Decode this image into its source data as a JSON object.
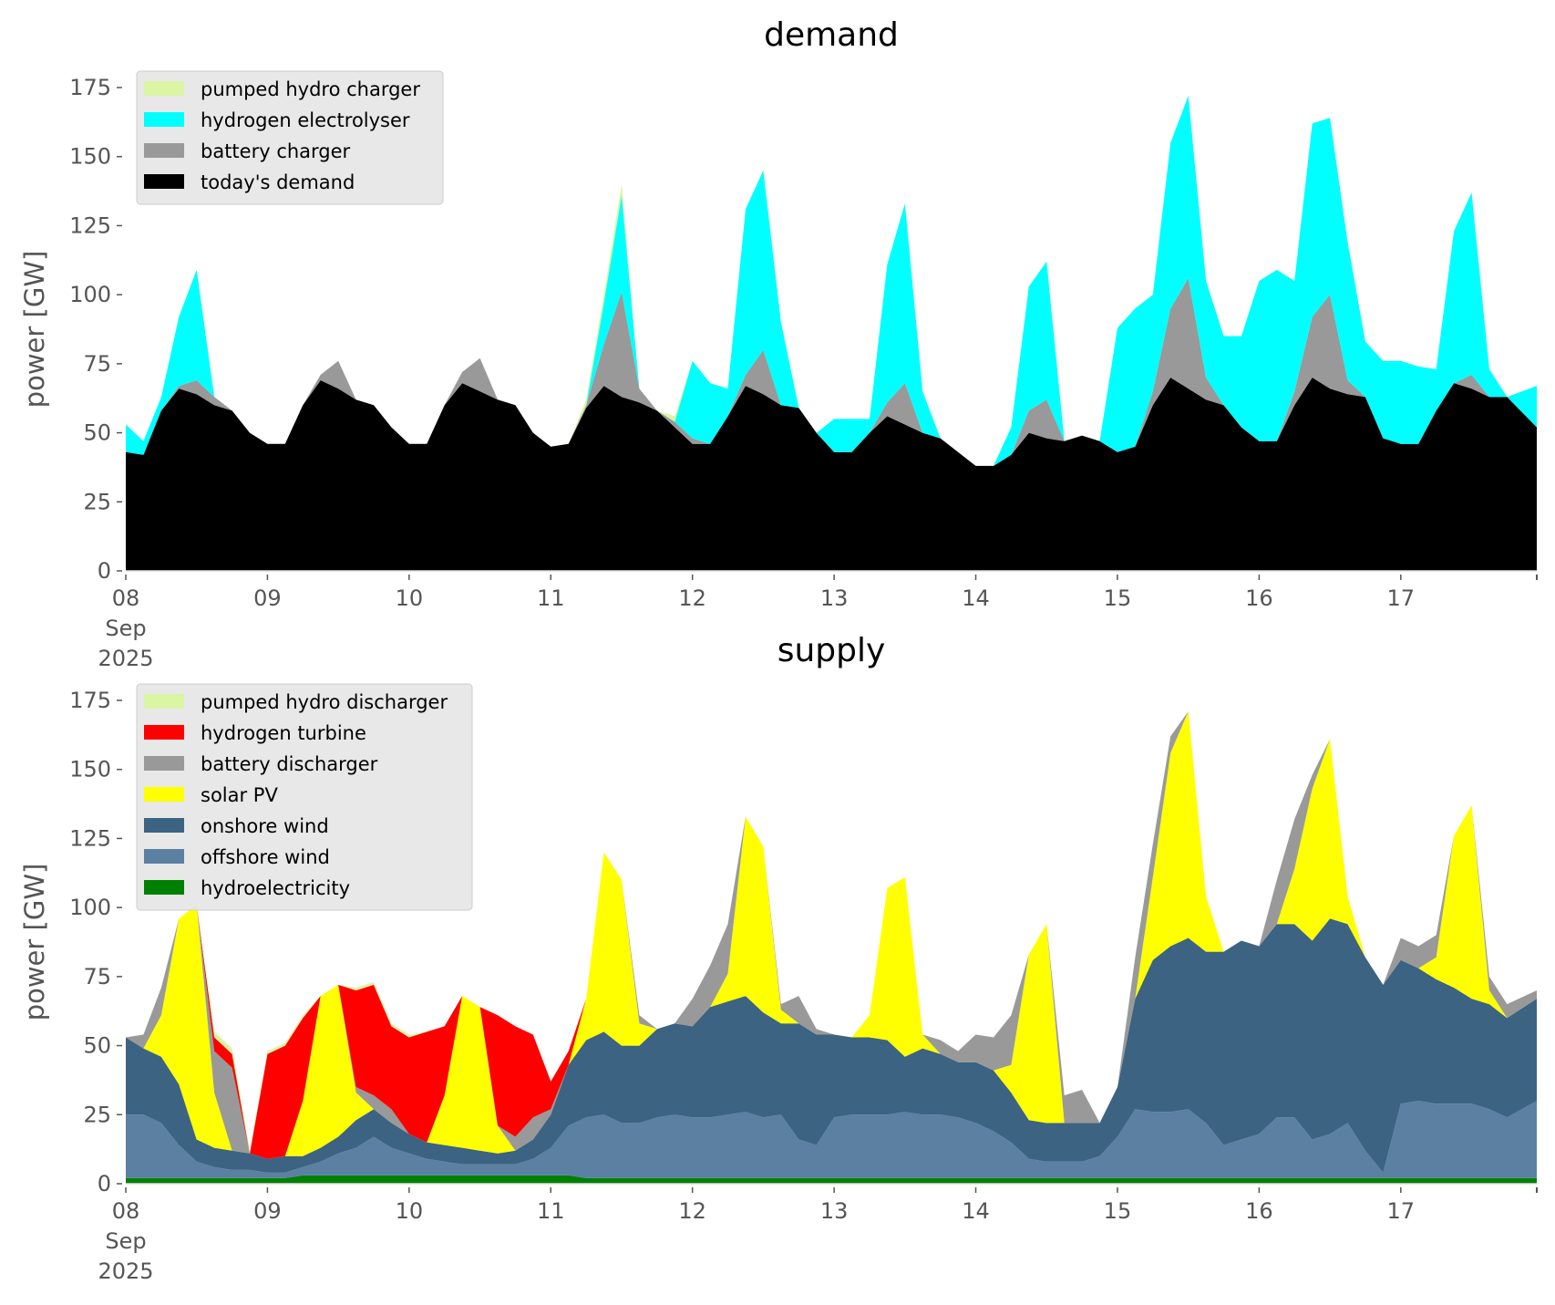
{
  "chart_data": [
    {
      "type": "area",
      "stacked": true,
      "title": "demand",
      "xlabel": "",
      "ylabel": "power [GW]",
      "ylim": [
        0,
        190
      ],
      "yticks": [
        0,
        25,
        50,
        75,
        100,
        125,
        150,
        175
      ],
      "xlim_days": [
        0,
        9.96
      ],
      "x_start": "2025-09-08 00:00",
      "x_step_hours": 3,
      "xtick_labels": [
        "08\nSep\n2025",
        "09",
        "10",
        "11",
        "12",
        "13",
        "14",
        "15",
        "16",
        "17"
      ],
      "grid": false,
      "legend_position": "top-left",
      "legend": [
        "pumped hydro charger",
        "hydrogen electrolyser",
        "battery charger",
        "today's demand"
      ],
      "series": [
        {
          "name": "today's demand",
          "color": "#000000",
          "values": [
            43,
            42,
            58,
            66,
            64,
            60,
            58,
            50,
            46,
            46,
            60,
            69,
            66,
            62,
            60,
            52,
            46,
            46,
            60,
            68,
            65,
            62,
            60,
            50,
            45,
            46,
            59,
            67,
            63,
            61,
            58,
            52,
            46,
            46,
            56,
            67,
            64,
            60,
            59,
            50,
            43,
            43,
            50,
            56,
            53,
            50,
            48,
            43,
            38,
            38,
            42,
            50,
            48,
            47,
            49,
            47,
            43,
            45,
            60,
            70,
            66,
            62,
            60,
            52,
            47,
            47,
            60,
            70,
            66,
            64,
            63,
            48,
            46,
            46,
            58,
            68,
            66,
            63,
            63,
            52
          ]
        },
        {
          "name": "battery charger",
          "color": "#999999",
          "values": [
            0,
            0,
            0,
            1,
            5,
            3,
            0,
            0,
            0,
            0,
            0,
            2,
            10,
            0,
            0,
            0,
            0,
            0,
            0,
            4,
            12,
            0,
            0,
            0,
            0,
            0,
            1,
            15,
            38,
            5,
            0,
            2,
            2,
            0,
            0,
            4,
            16,
            0,
            0,
            0,
            0,
            0,
            0,
            5,
            15,
            0,
            0,
            0,
            0,
            0,
            0,
            8,
            14,
            0,
            0,
            0,
            0,
            0,
            5,
            25,
            40,
            8,
            0,
            0,
            0,
            0,
            5,
            22,
            34,
            5,
            0,
            0,
            0,
            0,
            0,
            0,
            5,
            0,
            0,
            0
          ]
        },
        {
          "name": "hydrogen electrolyser",
          "color": "#00ffff",
          "values": [
            10,
            5,
            5,
            25,
            40,
            0,
            0,
            0,
            0,
            0,
            0,
            0,
            0,
            0,
            0,
            0,
            0,
            0,
            0,
            0,
            0,
            0,
            0,
            0,
            0,
            0,
            0,
            15,
            35,
            0,
            0,
            0,
            28,
            22,
            10,
            60,
            65,
            30,
            0,
            0,
            12,
            12,
            5,
            50,
            65,
            15,
            0,
            0,
            0,
            0,
            10,
            45,
            50,
            0,
            0,
            0,
            45,
            50,
            35,
            60,
            66,
            35,
            25,
            33,
            58,
            62,
            40,
            70,
            64,
            50,
            20,
            28,
            30,
            28,
            15,
            55,
            66,
            10,
            0,
            15
          ]
        },
        {
          "name": "pumped hydro charger",
          "color": "#daf5a4",
          "values": [
            0,
            0,
            0,
            0,
            0,
            0,
            0,
            0,
            0,
            0,
            0,
            0,
            0,
            0,
            0,
            0,
            0,
            0,
            0,
            0,
            0,
            0,
            0,
            0,
            0,
            0,
            2,
            3,
            4,
            0,
            0,
            2,
            0,
            0,
            0,
            0,
            0,
            0,
            0,
            0,
            0,
            0,
            0,
            0,
            0,
            0,
            0,
            0,
            0,
            0,
            0,
            0,
            0,
            0,
            0,
            0,
            0,
            0,
            0,
            0,
            0,
            0,
            0,
            0,
            0,
            0,
            0,
            0,
            0,
            0,
            0,
            0,
            0,
            0,
            0,
            0,
            0,
            0,
            0,
            0
          ]
        }
      ]
    },
    {
      "type": "area",
      "stacked": true,
      "title": "supply",
      "xlabel": "",
      "ylabel": "power [GW]",
      "ylim": [
        0,
        190
      ],
      "yticks": [
        0,
        25,
        50,
        75,
        100,
        125,
        150,
        175
      ],
      "xlim_days": [
        0,
        9.96
      ],
      "x_start": "2025-09-08 00:00",
      "x_step_hours": 3,
      "xtick_labels": [
        "08\nSep\n2025",
        "09",
        "10",
        "11",
        "12",
        "13",
        "14",
        "15",
        "16",
        "17"
      ],
      "grid": false,
      "legend_position": "top-left",
      "legend": [
        "pumped hydro discharger",
        "hydrogen turbine",
        "battery discharger",
        "solar PV",
        "onshore wind",
        "offshore wind",
        "hydroelectricity"
      ],
      "series": [
        {
          "name": "hydroelectricity",
          "color": "#008000",
          "values": [
            2,
            2,
            2,
            2,
            2,
            2,
            2,
            2,
            2,
            2,
            3,
            3,
            3,
            3,
            3,
            3,
            3,
            3,
            3,
            3,
            3,
            3,
            3,
            3,
            3,
            3,
            2,
            2,
            2,
            2,
            2,
            2,
            2,
            2,
            2,
            2,
            2,
            2,
            2,
            2,
            2,
            2,
            2,
            2,
            2,
            2,
            2,
            2,
            2,
            2,
            2,
            2,
            2,
            2,
            2,
            2,
            2,
            2,
            2,
            2,
            2,
            2,
            2,
            2,
            2,
            2,
            2,
            2,
            2,
            2,
            2,
            2,
            2,
            2,
            2,
            2,
            2,
            2,
            2,
            2
          ]
        },
        {
          "name": "offshore wind",
          "color": "#5b80a1",
          "values": [
            23,
            23,
            20,
            12,
            6,
            4,
            3,
            3,
            2,
            2,
            3,
            5,
            8,
            10,
            14,
            10,
            8,
            6,
            5,
            4,
            4,
            4,
            4,
            6,
            10,
            18,
            22,
            23,
            20,
            20,
            22,
            23,
            22,
            22,
            23,
            24,
            22,
            23,
            14,
            12,
            22,
            23,
            23,
            23,
            24,
            23,
            23,
            22,
            20,
            17,
            13,
            7,
            6,
            6,
            6,
            8,
            15,
            25,
            24,
            24,
            25,
            20,
            12,
            14,
            16,
            22,
            22,
            14,
            16,
            20,
            10,
            2,
            27,
            28,
            27,
            27,
            27,
            25,
            22,
            28
          ]
        },
        {
          "name": "onshore wind",
          "color": "#3c6382",
          "values": [
            28,
            24,
            24,
            22,
            8,
            7,
            7,
            6,
            5,
            6,
            4,
            5,
            6,
            10,
            10,
            9,
            7,
            6,
            6,
            6,
            5,
            4,
            5,
            7,
            12,
            22,
            28,
            30,
            28,
            28,
            32,
            33,
            33,
            40,
            41,
            42,
            38,
            33,
            42,
            40,
            30,
            28,
            28,
            27,
            20,
            24,
            22,
            20,
            22,
            22,
            18,
            14,
            14,
            14,
            14,
            12,
            18,
            40,
            55,
            60,
            62,
            62,
            70,
            72,
            68,
            70,
            70,
            72,
            78,
            72,
            70,
            68,
            52,
            48,
            45,
            42,
            38,
            38,
            36,
            37
          ]
        },
        {
          "name": "solar PV",
          "color": "#ffff00",
          "values": [
            0,
            0,
            15,
            60,
            85,
            20,
            0,
            0,
            0,
            0,
            20,
            55,
            55,
            10,
            0,
            0,
            0,
            0,
            18,
            55,
            52,
            10,
            0,
            0,
            0,
            0,
            15,
            65,
            60,
            8,
            0,
            0,
            0,
            0,
            10,
            65,
            60,
            5,
            0,
            0,
            0,
            0,
            8,
            55,
            65,
            5,
            0,
            0,
            0,
            0,
            10,
            60,
            72,
            0,
            0,
            0,
            0,
            0,
            30,
            70,
            82,
            20,
            0,
            0,
            0,
            0,
            20,
            55,
            65,
            10,
            0,
            0,
            0,
            0,
            8,
            55,
            70,
            5,
            0,
            0
          ]
        },
        {
          "name": "battery discharger",
          "color": "#999999",
          "values": [
            0,
            5,
            10,
            0,
            0,
            15,
            30,
            0,
            0,
            0,
            0,
            0,
            0,
            2,
            5,
            5,
            0,
            0,
            0,
            0,
            0,
            0,
            5,
            8,
            2,
            0,
            0,
            0,
            0,
            3,
            0,
            0,
            10,
            15,
            18,
            0,
            0,
            2,
            10,
            2,
            0,
            0,
            0,
            0,
            0,
            0,
            5,
            4,
            10,
            12,
            18,
            0,
            0,
            10,
            12,
            0,
            0,
            15,
            12,
            6,
            0,
            0,
            0,
            0,
            0,
            16,
            18,
            5,
            0,
            0,
            0,
            0,
            8,
            8,
            8,
            0,
            0,
            5,
            5,
            3
          ]
        },
        {
          "name": "hydrogen turbine",
          "color": "#ff0000",
          "values": [
            0,
            0,
            0,
            0,
            0,
            5,
            5,
            0,
            38,
            40,
            30,
            0,
            0,
            35,
            40,
            30,
            35,
            40,
            25,
            0,
            0,
            40,
            40,
            30,
            10,
            5,
            0,
            0,
            0,
            0,
            0,
            0,
            0,
            0,
            0,
            0,
            0,
            0,
            0,
            0,
            0,
            0,
            0,
            0,
            0,
            0,
            0,
            0,
            0,
            0,
            0,
            0,
            0,
            0,
            0,
            0,
            0,
            0,
            0,
            0,
            0,
            0,
            0,
            0,
            0,
            0,
            0,
            0,
            0,
            0,
            0,
            0,
            0,
            0,
            0,
            0,
            0,
            0,
            0,
            0
          ]
        },
        {
          "name": "pumped hydro discharger",
          "color": "#daf5a4",
          "values": [
            0,
            0,
            0,
            0,
            0,
            2,
            2,
            1,
            1,
            1,
            1,
            0,
            0,
            1,
            1,
            1,
            1,
            0,
            0,
            0,
            0,
            0,
            0,
            0,
            0,
            0,
            0,
            0,
            0,
            0,
            0,
            0,
            0,
            0,
            0,
            0,
            0,
            0,
            0,
            0,
            0,
            0,
            0,
            0,
            0,
            0,
            0,
            0,
            0,
            0,
            0,
            0,
            0,
            0,
            0,
            0,
            0,
            0,
            0,
            0,
            0,
            0,
            0,
            0,
            0,
            0,
            0,
            0,
            0,
            0,
            0,
            0,
            0,
            0,
            0,
            0,
            0,
            0,
            0,
            0
          ]
        }
      ]
    }
  ]
}
